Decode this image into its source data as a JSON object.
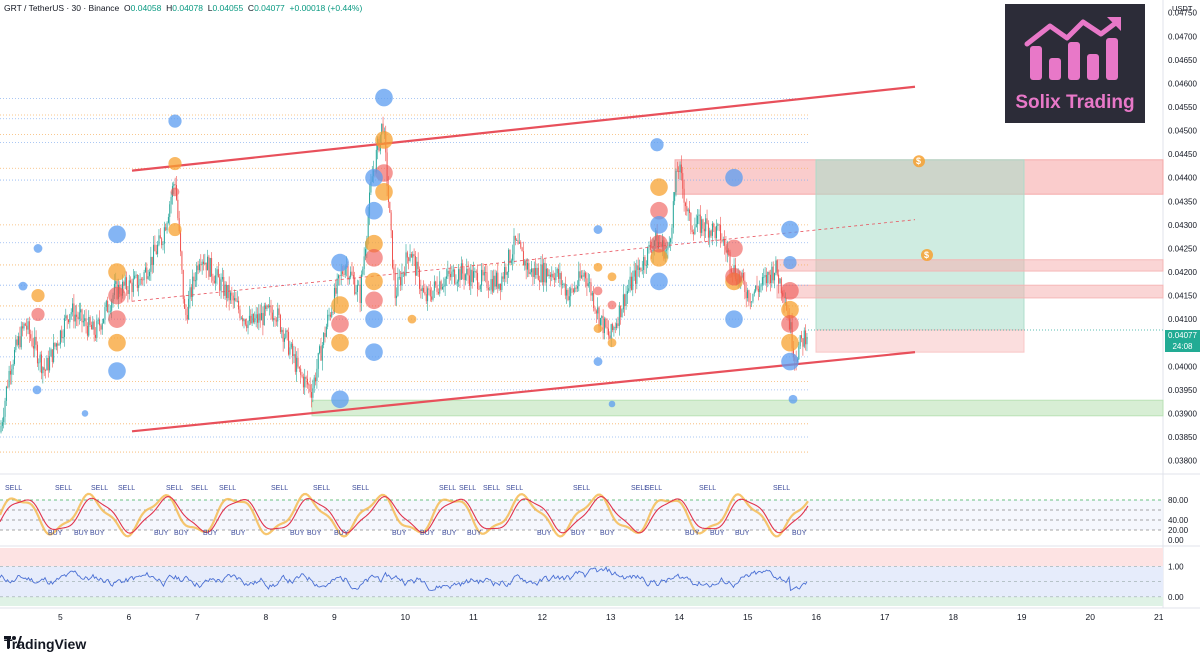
{
  "header": {
    "symbol": "GRT / TetherUS · 30 · Binance",
    "open_label": "O",
    "open": "0.04058",
    "high_label": "H",
    "high": "0.04078",
    "low_label": "L",
    "low": "0.04055",
    "close_label": "C",
    "close": "0.04077",
    "change": "+0.00018 (+0.44%)"
  },
  "currency": "USDT",
  "logo": {
    "text": "Solix Trading",
    "color": "#e878c8",
    "bg": "#2c2c38"
  },
  "branding": "TradingView",
  "last_price": {
    "value": "0.04077",
    "countdown": "24:08"
  },
  "colors": {
    "up": "#26a69a",
    "down": "#ef5350",
    "trendline": "#e8505b",
    "buy_marker": "#5b9cf0",
    "sell_marker": "#f7a130",
    "stoch_k": "#f5b84a",
    "stoch_d": "#e0334d",
    "osc": "#4a6fd4"
  },
  "chart_data": [
    {
      "type": "candlestick",
      "x_axis_labels": [
        "5",
        "6",
        "7",
        "8",
        "9",
        "10",
        "11",
        "12",
        "13",
        "14",
        "15",
        "16",
        "17",
        "18",
        "19",
        "20",
        "21"
      ],
      "y_axis_labels": [
        "0.04750",
        "0.04700",
        "0.04650",
        "0.04600",
        "0.04550",
        "0.04500",
        "0.04450",
        "0.04400",
        "0.04350",
        "0.04300",
        "0.04250",
        "0.04200",
        "0.04150",
        "0.04100",
        "0.04050",
        "0.04000",
        "0.03950",
        "0.03900",
        "0.03850",
        "0.03800"
      ],
      "ylim": [
        0.0378,
        0.0476
      ],
      "last_close": 0.04077,
      "waypoints": [
        [
          0,
          0.0386
        ],
        [
          10,
          0.04
        ],
        [
          25,
          0.0409
        ],
        [
          45,
          0.0399
        ],
        [
          70,
          0.0412
        ],
        [
          95,
          0.0407
        ],
        [
          115,
          0.0416
        ],
        [
          140,
          0.0418
        ],
        [
          162,
          0.0427
        ],
        [
          175,
          0.044
        ],
        [
          185,
          0.041
        ],
        [
          200,
          0.0424
        ],
        [
          225,
          0.0416
        ],
        [
          250,
          0.0409
        ],
        [
          275,
          0.0412
        ],
        [
          300,
          0.0398
        ],
        [
          312,
          0.0395
        ],
        [
          328,
          0.041
        ],
        [
          345,
          0.0422
        ],
        [
          360,
          0.0415
        ],
        [
          372,
          0.044
        ],
        [
          383,
          0.0452
        ],
        [
          395,
          0.0415
        ],
        [
          410,
          0.0425
        ],
        [
          425,
          0.0414
        ],
        [
          440,
          0.0418
        ],
        [
          460,
          0.042
        ],
        [
          485,
          0.0418
        ],
        [
          500,
          0.0418
        ],
        [
          515,
          0.0426
        ],
        [
          530,
          0.042
        ],
        [
          555,
          0.042
        ],
        [
          570,
          0.0415
        ],
        [
          585,
          0.042
        ],
        [
          600,
          0.041
        ],
        [
          610,
          0.0406
        ],
        [
          625,
          0.0415
        ],
        [
          645,
          0.0423
        ],
        [
          655,
          0.0427
        ],
        [
          668,
          0.0424
        ],
        [
          678,
          0.0443
        ],
        [
          690,
          0.043
        ],
        [
          705,
          0.043
        ],
        [
          720,
          0.0428
        ],
        [
          735,
          0.042
        ],
        [
          750,
          0.0415
        ],
        [
          765,
          0.0418
        ],
        [
          775,
          0.0421
        ],
        [
          785,
          0.0415
        ],
        [
          795,
          0.0402
        ],
        [
          808,
          0.0408
        ]
      ],
      "trendlines": [
        {
          "name": "upper-channel",
          "from": [
            132,
            0.04415
          ],
          "to": [
            915,
            0.04593
          ]
        },
        {
          "name": "lower-channel",
          "from": [
            132,
            0.03862
          ],
          "to": [
            915,
            0.0403
          ]
        },
        {
          "name": "mid-channel",
          "from": [
            132,
            0.04138
          ],
          "to": [
            915,
            0.04311
          ]
        }
      ],
      "zones": [
        {
          "name": "stop-zone",
          "color": "#f5a3a3",
          "from_x": 675,
          "to_x": 1163,
          "y": [
            0.04365,
            0.04438
          ]
        },
        {
          "name": "target-zone",
          "color": "#a8dcc9",
          "from_x": 816,
          "to_x": 1024,
          "y": [
            0.04077,
            0.04438
          ]
        },
        {
          "name": "risk-zone",
          "color": "#f8c2c2",
          "from_x": 816,
          "to_x": 1024,
          "y": [
            0.0403,
            0.04077
          ]
        },
        {
          "name": "resistance-band-1",
          "color": "#f5b3b3",
          "from_x": 777,
          "to_x": 1163,
          "y": [
            0.04202,
            0.04226
          ]
        },
        {
          "name": "resistance-band-2",
          "color": "#f5b3b3",
          "from_x": 777,
          "to_x": 1163,
          "y": [
            0.04145,
            0.04172
          ]
        },
        {
          "name": "support-zone",
          "color": "#b6e0b0",
          "from_x": 312,
          "to_x": 1163,
          "y": [
            0.03895,
            0.03928
          ]
        }
      ],
      "buy_markers": [
        [
          38,
          0.0425,
          2
        ],
        [
          23,
          0.0417,
          2
        ],
        [
          37,
          0.0395,
          2
        ],
        [
          85,
          0.039,
          1.5
        ],
        [
          117,
          0.0428,
          4
        ],
        [
          117,
          0.0399,
          4
        ],
        [
          175,
          0.0452,
          3
        ],
        [
          340,
          0.0422,
          4
        ],
        [
          374,
          0.044,
          4
        ],
        [
          374,
          0.0433,
          4
        ],
        [
          374,
          0.041,
          4
        ],
        [
          384,
          0.0457,
          4
        ],
        [
          374,
          0.0403,
          4
        ],
        [
          340,
          0.0393,
          4
        ],
        [
          598,
          0.0429,
          2
        ],
        [
          598,
          0.0401,
          2
        ],
        [
          612,
          0.0392,
          1.5
        ],
        [
          657,
          0.0447,
          3
        ],
        [
          659,
          0.0418,
          4
        ],
        [
          659,
          0.043,
          4
        ],
        [
          734,
          0.041,
          4
        ],
        [
          734,
          0.044,
          4
        ],
        [
          790,
          0.0429,
          4
        ],
        [
          790,
          0.0422,
          3
        ],
        [
          790,
          0.0401,
          4
        ],
        [
          793,
          0.0393,
          2
        ]
      ],
      "sell_markers": [
        [
          38,
          0.0415,
          3
        ],
        [
          117,
          0.042,
          4
        ],
        [
          117,
          0.0405,
          4
        ],
        [
          175,
          0.0443,
          3
        ],
        [
          175,
          0.0429,
          3
        ],
        [
          340,
          0.0413,
          4
        ],
        [
          340,
          0.0405,
          4
        ],
        [
          374,
          0.0426,
          4
        ],
        [
          374,
          0.0418,
          4
        ],
        [
          384,
          0.0448,
          4
        ],
        [
          384,
          0.0437,
          4
        ],
        [
          412,
          0.041,
          2
        ],
        [
          598,
          0.0421,
          2
        ],
        [
          598,
          0.0408,
          2
        ],
        [
          612,
          0.0405,
          2
        ],
        [
          612,
          0.0419,
          2
        ],
        [
          659,
          0.0438,
          4
        ],
        [
          659,
          0.0423,
          4
        ],
        [
          734,
          0.0418,
          4
        ],
        [
          790,
          0.0412,
          4
        ],
        [
          790,
          0.0405,
          4
        ]
      ],
      "sell_markers_red": [
        [
          38,
          0.0411,
          3
        ],
        [
          117,
          0.0415,
          4
        ],
        [
          117,
          0.041,
          4
        ],
        [
          175,
          0.0437,
          2
        ],
        [
          340,
          0.0409,
          4
        ],
        [
          374,
          0.0423,
          4
        ],
        [
          374,
          0.0414,
          4
        ],
        [
          384,
          0.0441,
          4
        ],
        [
          598,
          0.0416,
          2
        ],
        [
          612,
          0.0413,
          2
        ],
        [
          659,
          0.0433,
          4
        ],
        [
          659,
          0.0426,
          4
        ],
        [
          734,
          0.0425,
          4
        ],
        [
          734,
          0.0419,
          4
        ],
        [
          790,
          0.0416,
          4
        ],
        [
          790,
          0.0409,
          4
        ]
      ],
      "money_icons": [
        [
          919,
          0.04435
        ],
        [
          927,
          0.04236
        ]
      ]
    },
    {
      "type": "line",
      "name": "stochastic",
      "y_axis_labels": [
        "80.00",
        "40.00",
        "20.00",
        "0.00"
      ],
      "ylim": [
        0,
        100
      ],
      "levels": [
        80,
        60,
        40,
        20
      ],
      "signals_sell_x": [
        12,
        62,
        98,
        125,
        173,
        198,
        226,
        278,
        320,
        359,
        446,
        466,
        490,
        513,
        580,
        638,
        652,
        706,
        780
      ],
      "signals_buy_x": [
        54,
        80,
        96,
        160,
        180,
        209,
        237,
        296,
        313,
        340,
        398,
        426,
        448,
        473,
        543,
        577,
        606,
        691,
        716,
        741,
        798
      ],
      "sell_label": "SELL",
      "buy_label": "BUY"
    },
    {
      "type": "line",
      "name": "oscillator",
      "y_axis_labels": [
        "1.00",
        "0.00"
      ],
      "ylim": [
        -0.3,
        1.6
      ],
      "bands": [
        [
          1.0,
          1.6,
          "#fde3e3"
        ],
        [
          -0.3,
          0.0,
          "#dff2e6"
        ],
        [
          0.0,
          1.0,
          "#e6ecfb"
        ]
      ]
    }
  ]
}
